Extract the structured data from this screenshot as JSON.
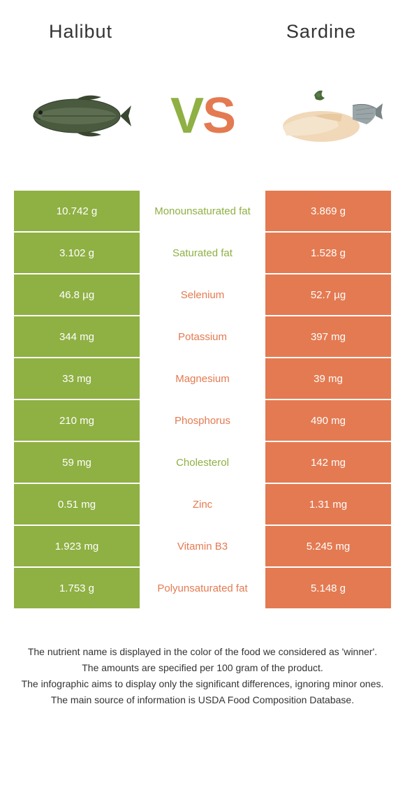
{
  "colors": {
    "left": "#8fb043",
    "right": "#e47a51",
    "text": "#333333",
    "white": "#ffffff"
  },
  "header": {
    "left_title": "Halibut",
    "right_title": "Sardine"
  },
  "vs": {
    "v": "V",
    "s": "S"
  },
  "rows": [
    {
      "left": "10.742 g",
      "label": "Monounsaturated fat",
      "right": "3.869 g",
      "winner": "left"
    },
    {
      "left": "3.102 g",
      "label": "Saturated fat",
      "right": "1.528 g",
      "winner": "left"
    },
    {
      "left": "46.8 µg",
      "label": "Selenium",
      "right": "52.7 µg",
      "winner": "right"
    },
    {
      "left": "344 mg",
      "label": "Potassium",
      "right": "397 mg",
      "winner": "right"
    },
    {
      "left": "33 mg",
      "label": "Magnesium",
      "right": "39 mg",
      "winner": "right"
    },
    {
      "left": "210 mg",
      "label": "Phosphorus",
      "right": "490 mg",
      "winner": "right"
    },
    {
      "left": "59 mg",
      "label": "Cholesterol",
      "right": "142 mg",
      "winner": "left"
    },
    {
      "left": "0.51 mg",
      "label": "Zinc",
      "right": "1.31 mg",
      "winner": "right"
    },
    {
      "left": "1.923 mg",
      "label": "Vitamin B3",
      "right": "5.245 mg",
      "winner": "right"
    },
    {
      "left": "1.753 g",
      "label": "Polyunsaturated fat",
      "right": "5.148 g",
      "winner": "right"
    }
  ],
  "footer": {
    "line1": "The nutrient name is displayed in the color of the food we considered as 'winner'.",
    "line2": "The amounts are specified per 100 gram of the product.",
    "line3": "The infographic aims to display only the significant differences, ignoring minor ones.",
    "line4": "The main source of information is USDA Food Composition Database."
  }
}
